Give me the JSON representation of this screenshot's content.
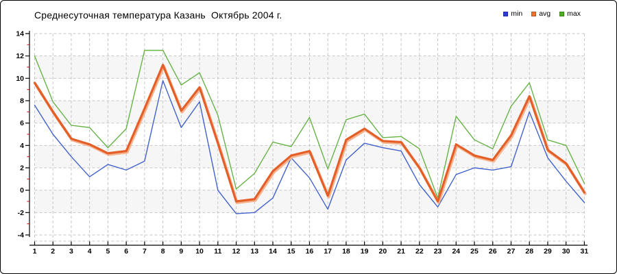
{
  "title": "Среднесуточная температура Казань  Октябрь 2004 г.",
  "legend": {
    "items": [
      {
        "label": "min",
        "color": "#2b3cd6"
      },
      {
        "label": "avg",
        "color": "#e9752e"
      },
      {
        "label": "max",
        "color": "#50ae25"
      }
    ]
  },
  "chart_data": {
    "type": "line",
    "title": "Среднесуточная температура Казань  Октябрь 2004 г.",
    "xlabel": "",
    "ylabel": "",
    "x": [
      1,
      2,
      3,
      4,
      5,
      6,
      7,
      8,
      9,
      10,
      11,
      12,
      13,
      14,
      15,
      16,
      17,
      18,
      19,
      20,
      21,
      22,
      23,
      24,
      25,
      26,
      27,
      28,
      29,
      30,
      31
    ],
    "x_tick_labels": [
      "1",
      "2",
      "3",
      "4",
      "5",
      "6",
      "7",
      "8",
      "9",
      "10",
      "11",
      "12",
      "13",
      "14",
      "15",
      "16",
      "17",
      "18",
      "19",
      "20",
      "21",
      "22",
      "23",
      "24",
      "25",
      "26",
      "27",
      "28",
      "29",
      "30",
      "31"
    ],
    "y_ticks": [
      14,
      12,
      10,
      8,
      6,
      4,
      2,
      0,
      -2,
      -4
    ],
    "ylim": [
      -4,
      14
    ],
    "grid": true,
    "grid_style": "dashed",
    "background_bands": [
      [
        12,
        10
      ],
      [
        8,
        6
      ],
      [
        4,
        2
      ],
      [
        0,
        -2
      ]
    ],
    "legend_position": "top-right",
    "series": [
      {
        "name": "min",
        "color": "#4262cb",
        "values": [
          7.6,
          5.0,
          3.0,
          1.2,
          2.3,
          1.8,
          2.6,
          9.8,
          5.6,
          7.9,
          0.0,
          -2.1,
          -2.0,
          -0.7,
          2.9,
          1.1,
          -1.7,
          2.7,
          4.2,
          3.8,
          3.5,
          0.5,
          -1.5,
          1.4,
          2.0,
          1.8,
          2.1,
          7.0,
          2.9,
          0.8,
          -1.1
        ]
      },
      {
        "name": "avg",
        "color": "#e45f28",
        "values": [
          9.6,
          7.0,
          4.6,
          4.1,
          3.3,
          3.5,
          7.3,
          11.2,
          7.1,
          9.2,
          4.2,
          -1.0,
          -0.8,
          1.7,
          3.1,
          3.5,
          -0.5,
          4.5,
          5.5,
          4.4,
          4.3,
          2.0,
          -1.0,
          4.1,
          3.1,
          2.7,
          4.9,
          8.4,
          3.6,
          2.4,
          -0.2
        ]
      },
      {
        "name": "max",
        "color": "#67b347",
        "values": [
          12.0,
          7.9,
          5.8,
          5.6,
          3.8,
          5.5,
          12.5,
          12.5,
          9.4,
          10.5,
          6.7,
          0.1,
          1.5,
          4.3,
          3.9,
          6.5,
          1.9,
          6.3,
          6.8,
          4.7,
          4.8,
          3.7,
          -0.7,
          6.6,
          4.5,
          3.7,
          7.5,
          9.6,
          4.5,
          4.0,
          0.6
        ]
      }
    ]
  }
}
